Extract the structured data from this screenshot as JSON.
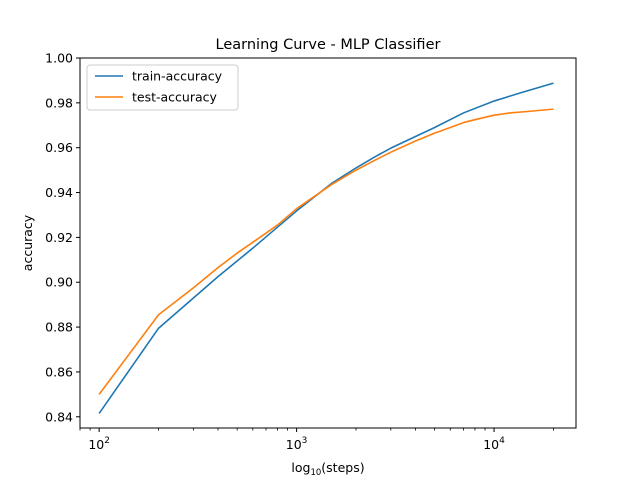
{
  "chart_data": {
    "type": "line",
    "title": "Learning Curve - MLP Classifier",
    "xlabel": "log",
    "xlabel_sub": "10",
    "xlabel_rest": "(steps)",
    "ylabel": "accuracy",
    "x_scale": "log",
    "xlim": [
      80,
      26000
    ],
    "ylim": [
      0.835,
      1.0
    ],
    "x_ticks": [
      {
        "value": 100,
        "base": "10",
        "exp": "2"
      },
      {
        "value": 1000,
        "base": "10",
        "exp": "3"
      },
      {
        "value": 10000,
        "base": "10",
        "exp": "4"
      }
    ],
    "y_ticks": [
      0.84,
      0.86,
      0.88,
      0.9,
      0.92,
      0.94,
      0.96,
      0.98,
      1.0
    ],
    "y_tick_labels": [
      "0.84",
      "0.86",
      "0.88",
      "0.90",
      "0.92",
      "0.94",
      "0.96",
      "0.98",
      "1.00"
    ],
    "grid": false,
    "legend_position": "top-left",
    "series": [
      {
        "name": "train-accuracy",
        "color": "#1f77b4",
        "x": [
          100,
          200,
          400,
          600,
          1000,
          1500,
          2000,
          2500,
          3000,
          4000,
          5000,
          7000,
          10000,
          14000,
          20000
        ],
        "values": [
          0.8415,
          0.8795,
          0.9025,
          0.9152,
          0.9318,
          0.944,
          0.951,
          0.956,
          0.9598,
          0.965,
          0.969,
          0.9755,
          0.9808,
          0.9848,
          0.9888
        ]
      },
      {
        "name": "test-accuracy",
        "color": "#ff7f0e",
        "x": [
          100,
          200,
          300,
          400,
          500,
          600,
          800,
          1000,
          1500,
          2000,
          2500,
          3000,
          4000,
          5000,
          6000,
          7000,
          8000,
          10000,
          12000,
          15000,
          20000
        ],
        "values": [
          0.85,
          0.8855,
          0.8975,
          0.9065,
          0.913,
          0.9178,
          0.9255,
          0.9328,
          0.9435,
          0.95,
          0.9545,
          0.958,
          0.963,
          0.9665,
          0.969,
          0.9712,
          0.9725,
          0.9745,
          0.9755,
          0.9762,
          0.9772
        ]
      }
    ]
  }
}
